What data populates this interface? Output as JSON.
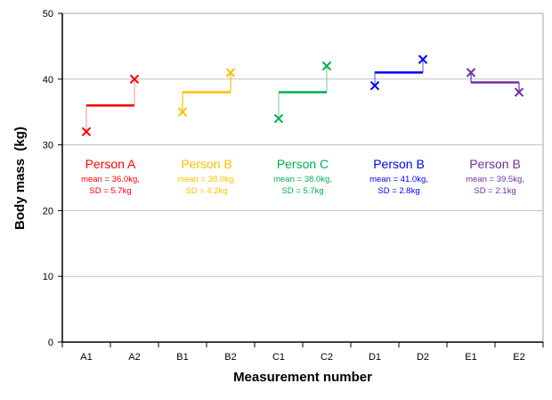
{
  "chart_data": {
    "type": "line",
    "title": "",
    "xlabel": "Measurement number",
    "ylabel": "Body mass  (kg)",
    "ylim": [
      0,
      50
    ],
    "yticks": [
      0,
      10,
      20,
      30,
      40,
      50
    ],
    "grid": true,
    "categories": [
      "A1",
      "A2",
      "B1",
      "B2",
      "C1",
      "C2",
      "D1",
      "D2",
      "E1",
      "E2"
    ],
    "groups": [
      {
        "name": "Person A",
        "points": [
          32,
          40
        ],
        "mean": 36.0,
        "mean_label": "mean = 36.0kg,",
        "sd_label": "SD = 5.7kg",
        "color": "#FF0000",
        "light": "#F4A6A6"
      },
      {
        "name": "Person B",
        "points": [
          35,
          41
        ],
        "mean": 38.0,
        "mean_label": "mean = 38.0kg,",
        "sd_label": "SD = 4.2kg",
        "color": "#FFC000",
        "light": "#FFC000"
      },
      {
        "name": "Person C",
        "points": [
          34,
          42
        ],
        "mean": 38.0,
        "mean_label": "mean = 38.0kg,",
        "sd_label": "SD = 5.7kg",
        "color": "#00B050",
        "light": "#7FD9A5"
      },
      {
        "name": "Person B",
        "points": [
          39,
          43
        ],
        "mean": 41.0,
        "mean_label": "mean = 41.0kg,",
        "sd_label": "SD = 2.8kg",
        "color": "#0000FF",
        "light": "#6F6FFF"
      },
      {
        "name": "Person B",
        "points": [
          41,
          38
        ],
        "mean": 39.5,
        "mean_label": "mean = 39.5kg,",
        "sd_label": "SD = 2.1kg",
        "color": "#7030A0",
        "light": "#7030A0"
      }
    ]
  }
}
